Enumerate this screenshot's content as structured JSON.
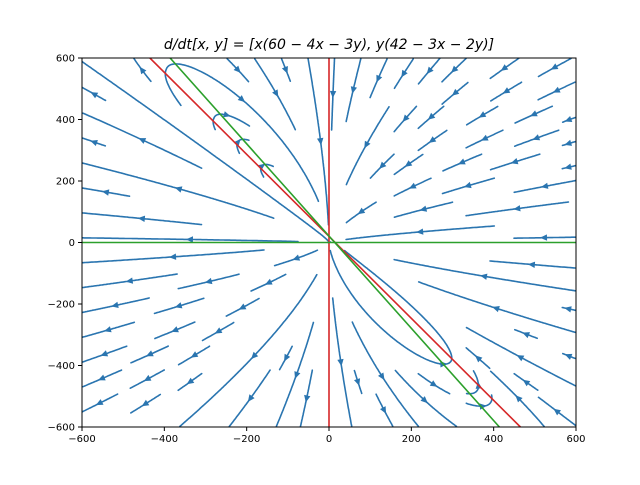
{
  "chart_data": {
    "type": "streamplot",
    "title": "d/dt[x, y] = [x(60 − 4x − 3y), y(42 − 3x − 2y)]",
    "xlim": [
      -600,
      600
    ],
    "ylim": [
      -600,
      600
    ],
    "x_ticks": [
      -600,
      -400,
      -200,
      0,
      200,
      400,
      600
    ],
    "y_ticks": [
      -600,
      -400,
      -200,
      0,
      200,
      400,
      600
    ],
    "x_tick_labels": [
      "−600",
      "−400",
      "−200",
      "0",
      "200",
      "400",
      "600"
    ],
    "y_tick_labels": [
      "−600",
      "−400",
      "−200",
      "0",
      "200",
      "400",
      "600"
    ],
    "grid": false,
    "system": {
      "dx": "x*(60 - 4*x - 3*y)",
      "dy": "y*(42 - 3*x - 2*y)"
    },
    "nullclines": [
      {
        "color": "#d62728",
        "points": [
          [
            0,
            -600
          ],
          [
            0,
            600
          ]
        ]
      },
      {
        "color": "#d62728",
        "points": [
          [
            -435,
            600
          ],
          [
            465,
            -600
          ]
        ]
      },
      {
        "color": "#2ca02c",
        "points": [
          [
            -600,
            0
          ],
          [
            600,
            0
          ]
        ]
      },
      {
        "color": "#2ca02c",
        "points": [
          [
            -386,
            600
          ],
          [
            414,
            -600
          ]
        ]
      }
    ],
    "stream_color": "#2a75b0"
  }
}
